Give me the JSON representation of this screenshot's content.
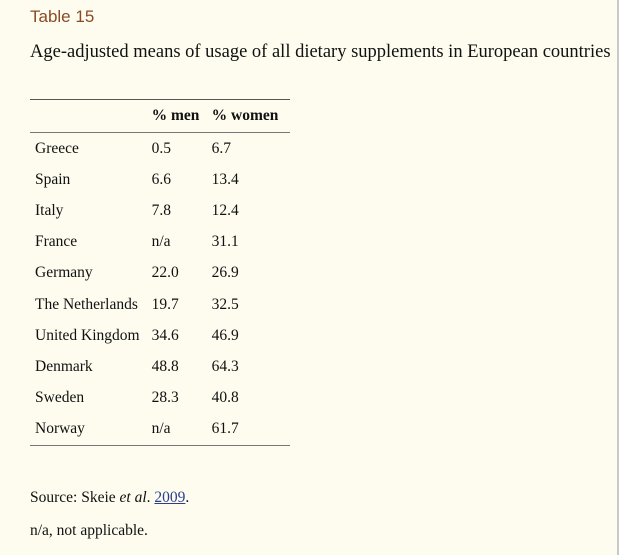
{
  "table_label": "Table 15",
  "caption": "Age-adjusted means of usage of all dietary supplements in European countries",
  "columns": {
    "country": "",
    "men": "% men",
    "women": "% women"
  },
  "rows": [
    {
      "country": "Greece",
      "men": "0.5",
      "women": "6.7"
    },
    {
      "country": "Spain",
      "men": "6.6",
      "women": "13.4"
    },
    {
      "country": "Italy",
      "men": "7.8",
      "women": "12.4"
    },
    {
      "country": "France",
      "men": "n/a",
      "women": "31.1"
    },
    {
      "country": "Germany",
      "men": "22.0",
      "women": "26.9"
    },
    {
      "country": "The Netherlands",
      "men": "19.7",
      "women": "32.5"
    },
    {
      "country": "United Kingdom",
      "men": "34.6",
      "women": "46.9"
    },
    {
      "country": "Denmark",
      "men": "48.8",
      "women": "64.3"
    },
    {
      "country": "Sweden",
      "men": "28.3",
      "women": "40.8"
    },
    {
      "country": "Norway",
      "men": "n/a",
      "women": "61.7"
    }
  ],
  "footnotes": {
    "source_prefix": "Source: Skeie ",
    "source_etal": "et al",
    "source_dot": ". ",
    "source_year": "2009",
    "source_end": ".",
    "na_note": "n/a, not applicable."
  },
  "colors": {
    "background": "#fdfcef",
    "label": "#8a4b24",
    "link": "#2a3f8f"
  }
}
